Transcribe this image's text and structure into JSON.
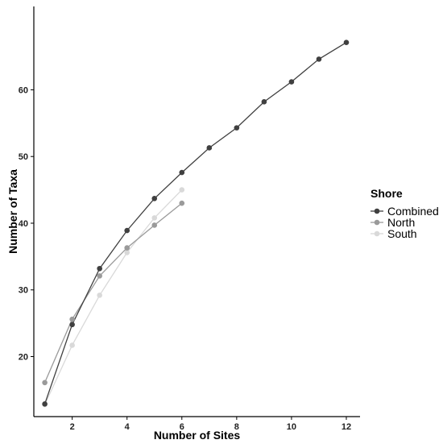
{
  "chart_data": {
    "type": "line",
    "title": "",
    "xlabel": "Number of Sites",
    "ylabel": "Number of Taxa",
    "xlim": [
      0.6,
      12.5
    ],
    "ylim": [
      11,
      72.5
    ],
    "x_ticks": [
      2,
      4,
      6,
      8,
      10,
      12
    ],
    "y_ticks": [
      20,
      30,
      40,
      50,
      60
    ],
    "grid": false,
    "legend": {
      "title": "Shore",
      "position": "right"
    },
    "series": [
      {
        "name": "Combined",
        "color": "#404040",
        "x": [
          1,
          2,
          3,
          4,
          5,
          6,
          7,
          8,
          9,
          10,
          11,
          12
        ],
        "y": [
          12.9,
          24.8,
          33.2,
          38.9,
          43.7,
          47.6,
          51.3,
          54.3,
          58.2,
          61.2,
          64.6,
          67.1
        ]
      },
      {
        "name": "North",
        "color": "#9a9a9a",
        "x": [
          1,
          2,
          3,
          4,
          5,
          6
        ],
        "y": [
          16.1,
          25.6,
          32.1,
          36.3,
          39.7,
          43.0
        ]
      },
      {
        "name": "South",
        "color": "#d9d9d9",
        "x": [
          1,
          2,
          3,
          4,
          5,
          6
        ],
        "y": [
          12.8,
          21.7,
          29.2,
          35.6,
          40.8,
          45.0
        ]
      }
    ]
  }
}
